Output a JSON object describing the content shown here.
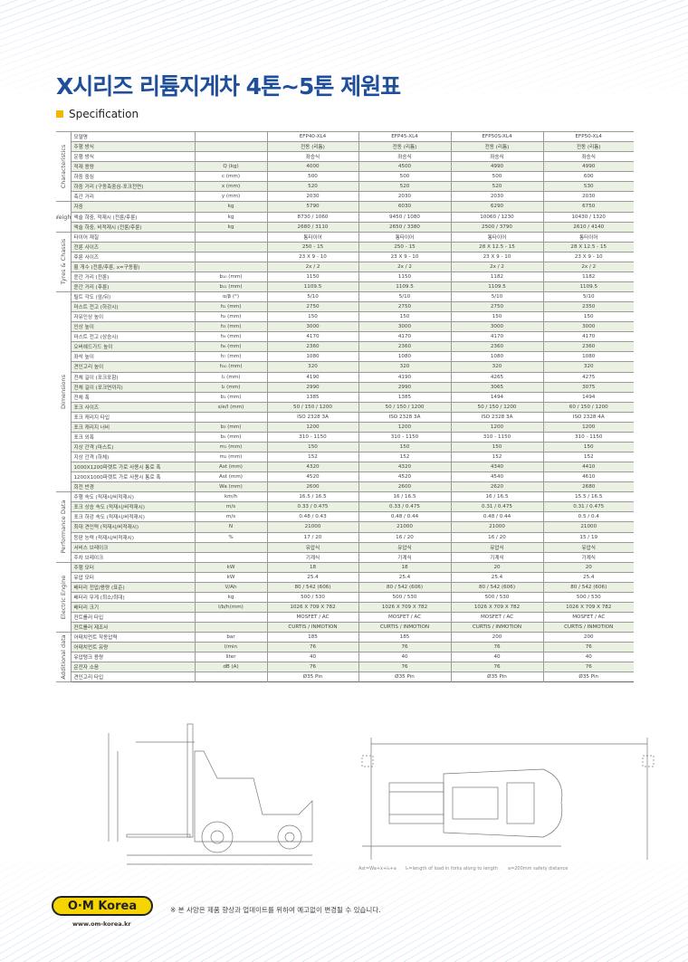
{
  "header": {
    "title": "X시리즈 리튬지게차 4톤~5톤 제원표",
    "subtitle": "Specification"
  },
  "spec": {
    "sections": [
      {
        "name": "Characteristics",
        "rows": [
          [
            "모델명",
            "",
            "EFP40-XL4",
            "EFP45-XL4",
            "EFP50S-XL4",
            "EFP50-XL4"
          ],
          [
            "주행 방식",
            "",
            "전동 (리튬)",
            "전동 (리튬)",
            "전동 (리튬)",
            "전동 (리튬)"
          ],
          [
            "운행 방식",
            "",
            "좌승식",
            "좌승식",
            "좌승식",
            "좌승식"
          ],
          [
            "적재 용량",
            "Q (kg)",
            "4000",
            "4500",
            "4990",
            "4990"
          ],
          [
            "하중 중심",
            "c (mm)",
            "500",
            "500",
            "500",
            "600"
          ],
          [
            "하중 거리 (구동축중심-포크전면)",
            "x (mm)",
            "520",
            "520",
            "520",
            "530"
          ],
          [
            "축간 거리",
            "y (mm)",
            "2030",
            "2030",
            "2030",
            "2030"
          ]
        ]
      },
      {
        "name": "Weight",
        "rows": [
          [
            "자중",
            "kg",
            "5790",
            "6030",
            "6290",
            "6750"
          ],
          [
            "액슬 하중, 적재시 (전륜/후륜)",
            "kg",
            "8730 / 1060",
            "9450 / 1080",
            "10060 / 1230",
            "10430 / 1320"
          ],
          [
            "액슬 하중, 비적재시 (전륜/후륜)",
            "kg",
            "2680 / 3110",
            "2650 / 3380",
            "2500 / 3790",
            "2610 / 4140"
          ]
        ]
      },
      {
        "name": "Tyres & Chassis",
        "rows": [
          [
            "타이어 재질",
            "",
            "통타이어",
            "통타이어",
            "통타이어",
            "통타이어"
          ],
          [
            "전륜 사이즈",
            "",
            "250 - 15",
            "250 - 15",
            "28 X 12.5 - 15",
            "28 X 12.5 - 15"
          ],
          [
            "후륜 사이즈",
            "",
            "23 X 9 - 10",
            "23 X 9 - 10",
            "23 X 9 - 10",
            "23 X 9 - 10"
          ],
          [
            "휠 개수 (전륜/후륜, x=구동휠)",
            "",
            "2x / 2",
            "2x / 2",
            "2x / 2",
            "2x / 2"
          ],
          [
            "윤간 거리 (전륜)",
            "b₁₀ (mm)",
            "1150",
            "1150",
            "1182",
            "1182"
          ],
          [
            "윤간 거리 (후륜)",
            "b₁₁ (mm)",
            "1109.5",
            "1109.5",
            "1109.5",
            "1109.5"
          ]
        ]
      },
      {
        "name": "Dimensions",
        "rows": [
          [
            "틸트 각도 (앞/뒤)",
            "α/β (°)",
            "5/10",
            "5/10",
            "5/10",
            "5/10"
          ],
          [
            "마스트 전고 (하강시)",
            "h₁ (mm)",
            "2750",
            "2750",
            "2750",
            "2350"
          ],
          [
            "자유인상 높이",
            "h₂ (mm)",
            "150",
            "150",
            "150",
            "150"
          ],
          [
            "인상 높이",
            "h₃ (mm)",
            "3000",
            "3000",
            "3000",
            "3000"
          ],
          [
            "마스트 전고 (상승시)",
            "h₄ (mm)",
            "4170",
            "4170",
            "4170",
            "4170"
          ],
          [
            "오버헤드가드 높이",
            "h₆ (mm)",
            "2360",
            "2360",
            "2360",
            "2360"
          ],
          [
            "좌석 높이",
            "h₇ (mm)",
            "1080",
            "1080",
            "1080",
            "1080"
          ],
          [
            "견인고리 높이",
            "h₁₀ (mm)",
            "320",
            "320",
            "320",
            "320"
          ],
          [
            "전체 길이 (포크포함)",
            "l₁ (mm)",
            "4190",
            "4190",
            "4265",
            "4275"
          ],
          [
            "전체 길이 (포크면까지)",
            "l₂ (mm)",
            "2990",
            "2990",
            "3065",
            "3075"
          ],
          [
            "전체 폭",
            "b₁ (mm)",
            "1385",
            "1385",
            "1494",
            "1494"
          ],
          [
            "포크 사이즈",
            "s/e/l (mm)",
            "50 / 150 / 1200",
            "50 / 150 / 1200",
            "50 / 150 / 1200",
            "60 / 150 / 1200"
          ],
          [
            "포크 캐리지 타입",
            "",
            "ISO 2328 3A",
            "ISO 2328 3A",
            "ISO 2328 3A",
            "ISO 2328 4A"
          ],
          [
            "포크 캐리지 너비",
            "b₃ (mm)",
            "1200",
            "1200",
            "1200",
            "1200"
          ],
          [
            "포크 외폭",
            "b₅ (mm)",
            "310 - 1150",
            "310 - 1150",
            "310 - 1150",
            "310 - 1150"
          ],
          [
            "지상 간격 (마스트)",
            "m₁ (mm)",
            "150",
            "150",
            "150",
            "150"
          ],
          [
            "지상 간격 (하체)",
            "m₂ (mm)",
            "152",
            "152",
            "152",
            "152"
          ],
          [
            "1000X1200파렛트 가로 사용시 통로 폭",
            "Ast (mm)",
            "4320",
            "4320",
            "4340",
            "4410"
          ],
          [
            "1200X1000파렛트 가로 사용시 통로 폭",
            "Ast (mm)",
            "4520",
            "4520",
            "4540",
            "4610"
          ],
          [
            "회전 반경",
            "Wa (mm)",
            "2600",
            "2600",
            "2620",
            "2680"
          ]
        ]
      },
      {
        "name": "Performance Data",
        "rows": [
          [
            "주행 속도 (적재시/비적재시)",
            "km/h",
            "16.5 / 16.5",
            "16 / 16.5",
            "16 / 16.5",
            "15.5 / 16.5"
          ],
          [
            "포크 상승 속도 (적재시/비적재시)",
            "m/s",
            "0.33 / 0.475",
            "0.33 / 0.475",
            "0.31 / 0.475",
            "0.31 / 0.475"
          ],
          [
            "포크 하강 속도 (적재시/비적재시)",
            "m/s",
            "0.48 / 0.43",
            "0.48 / 0.44",
            "0.48 / 0.44",
            "0.5 / 0.4"
          ],
          [
            "최대 견인력 (적재시/비적재시)",
            "N",
            "21000",
            "21000",
            "21000",
            "21000"
          ],
          [
            "등판 능력 (적재시/비적재시)",
            "%",
            "17 / 20",
            "16 / 20",
            "16 / 20",
            "15 / 19"
          ],
          [
            "서비스 브레이크",
            "",
            "유압식",
            "유압식",
            "유압식",
            "유압식"
          ],
          [
            "주차 브레이크",
            "",
            "기계식",
            "기계식",
            "기계식",
            "기계식"
          ]
        ]
      },
      {
        "name": "Electric Engine",
        "rows": [
          [
            "주행 모터",
            "kW",
            "18",
            "18",
            "20",
            "20"
          ],
          [
            "유압 모터",
            "kW",
            "25.4",
            "25.4",
            "25.4",
            "25.4"
          ],
          [
            "배터리 전압/용량 (표준)",
            "V/Ah",
            "80 / 542 (606)",
            "80 / 542 (606)",
            "80 / 542 (606)",
            "80 / 542 (606)"
          ],
          [
            "배터리 무게 (최소/최대)",
            "kg",
            "500 / 530",
            "500 / 530",
            "500 / 530",
            "500 / 530"
          ],
          [
            "배터리 크기",
            "l/b/h(mm)",
            "1026 X 709 X 782",
            "1026 X 709 X 782",
            "1026 X 709 X 782",
            "1026 X 709 X 782"
          ],
          [
            "컨트롤러 타입",
            "",
            "MOSFET / AC",
            "MOSFET / AC",
            "MOSFET / AC",
            "MOSFET / AC"
          ],
          [
            "컨트롤러 제조사",
            "",
            "CURTIS / INMOTION",
            "CURTIS / INMOTION",
            "CURTIS / INMOTION",
            "CURTIS / INMOTION"
          ]
        ]
      },
      {
        "name": "Additional data",
        "rows": [
          [
            "어태치먼트 작동압력",
            "bar",
            "185",
            "185",
            "200",
            "200"
          ],
          [
            "어태치먼트 유량",
            "l/min",
            "76",
            "76",
            "76",
            "76"
          ],
          [
            "유압탱크 용량",
            "liter",
            "40",
            "40",
            "40",
            "40"
          ],
          [
            "운전자 소음",
            "dB (A)",
            "76",
            "76",
            "76",
            "76"
          ],
          [
            "견인고리 타입",
            "",
            "Ø35 Pin",
            "Ø35 Pin",
            "Ø35 Pin",
            "Ø35 Pin"
          ]
        ]
      }
    ]
  },
  "diagram": {
    "captions": [
      "Ast=Wa+x+l₆+a",
      "l₆=length of load in forks along to length",
      "a=200mm safety distance"
    ]
  },
  "footer": {
    "logo": "O·M Korea",
    "url": "www.om-korea.kr",
    "note": "※ 본 사양은 제품 향상과 업데이트를 위하여 예고없이 변경될 수 있습니다."
  },
  "colors": {
    "title": "#1f4e9a",
    "accent": "#f2b705",
    "row_shade": "#eaf1e3"
  }
}
